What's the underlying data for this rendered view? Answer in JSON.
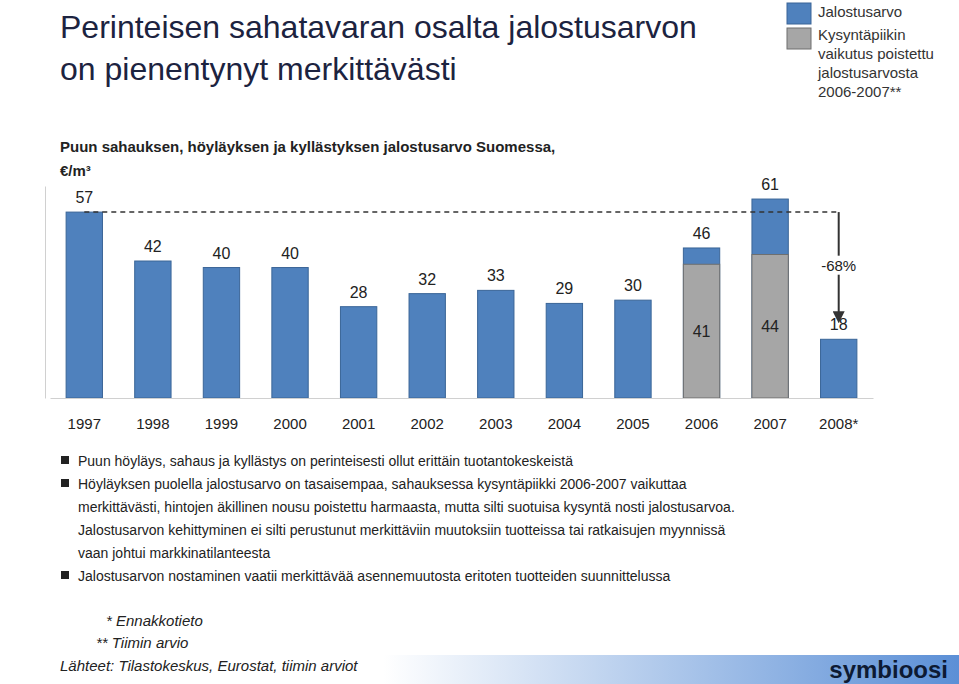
{
  "chart_data": {
    "type": "bar",
    "title": "Perinteisen sahatavaran osalta jalostusarvon on pienentynyt merkittävästi",
    "subtitle": "Puun sahauksen, höyläyksen ja kyllästyksen jalostusarvo Suomessa, €/m³",
    "categories": [
      "1997",
      "1998",
      "1999",
      "2000",
      "2001",
      "2002",
      "2003",
      "2004",
      "2005",
      "2006",
      "2007",
      "2008*"
    ],
    "series": [
      {
        "name": "Jalostusarvo",
        "color": "#4F81BD",
        "values": [
          57,
          42,
          40,
          40,
          28,
          32,
          33,
          29,
          30,
          46,
          61,
          18
        ]
      },
      {
        "name": "Kysyntäpiikin vaikutus poistettu jalostusarvosta 2006-2007**",
        "color": "#A6A6A6",
        "values": [
          null,
          null,
          null,
          null,
          null,
          null,
          null,
          null,
          null,
          41,
          44,
          null
        ]
      }
    ],
    "ylim": [
      0,
      65
    ],
    "yticks": [],
    "tick_labels": "x",
    "data_labels": true,
    "stacked": false,
    "legend": "top-right",
    "annotations": [
      "-68%"
    ]
  },
  "bullets": [
    [
      "Puun höyläys, sahaus ja kyllästys on perinteisesti ollut erittäin tuotantokeskeistä"
    ],
    [
      "Höyläyksen puolella jalostusarvo on tasaisempaa, sahauksessa kysyntäpiikki 2006-2007 vaikuttaa",
      "merkittävästi, hintojen äkillinen nousu poistettu harmaasta, mutta silti suotuisa kysyntä nosti jalostusarvoa.",
      "Jalostusarvon kehittyminen ei silti perustunut merkittäviin muutoksiin tuotteissa tai ratkaisujen myynnissä",
      "vaan johtui markkinatilanteesta"
    ],
    [
      "Jalostusarvon nostaminen vaatii merkittävää asennemuutosta eritoten tuotteiden suunnittelussa"
    ]
  ],
  "footnotes": [
    "* Ennakkotieto",
    "** Tiimin arvio"
  ],
  "source": "Lähteet: Tilastokeskus, Eurostat, tiimin arviot",
  "logo": "symbioosi"
}
